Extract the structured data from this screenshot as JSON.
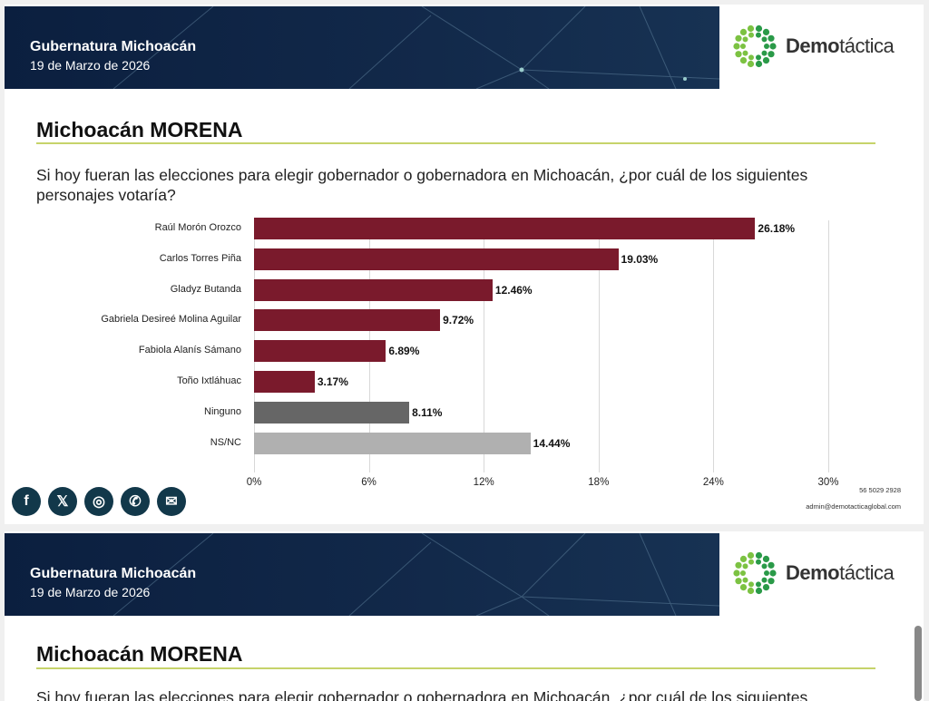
{
  "header": {
    "title": "Gubernatura Michoacán",
    "date": "19 de Marzo de 2026",
    "brand_bold": "Demo",
    "brand_light": "táctica"
  },
  "slide": {
    "title": "Michoacán MORENA",
    "question": "Si hoy fueran las elecciones para elegir gobernador o gobernadora en Michoacán, ¿por cuál de los siguientes personajes votaría?",
    "question_cut": "Si hoy fueran las elecciones para elegir gobernador o gobernadora en Michoacán, ¿por cuál de los siguientes"
  },
  "chart_data": {
    "type": "bar",
    "orientation": "horizontal",
    "categories": [
      "Raúl Morón Orozco",
      "Carlos Torres Piña",
      "Gladyz Butanda",
      "Gabriela Desireé Molina Aguilar",
      "Fabiola Alanís Sámano",
      "Toño Ixtláhuac",
      "Ninguno",
      "NS/NC"
    ],
    "values": [
      26.18,
      19.03,
      12.46,
      9.72,
      6.89,
      3.17,
      8.11,
      14.44
    ],
    "labels": [
      "26.18%",
      "19.03%",
      "12.46%",
      "9.72%",
      "6.89%",
      "3.17%",
      "8.11%",
      "14.44%"
    ],
    "colors": [
      "#7a1a2c",
      "#7a1a2c",
      "#7a1a2c",
      "#7a1a2c",
      "#7a1a2c",
      "#7a1a2c",
      "#666666",
      "#b0b0b0"
    ],
    "xlim": [
      0,
      30
    ],
    "xticks": [
      "0%",
      "6%",
      "12%",
      "18%",
      "24%",
      "30%"
    ],
    "grid": true
  },
  "footer": {
    "social": [
      "facebook",
      "x",
      "instagram",
      "phone",
      "email"
    ],
    "phone": "56 5029 2928",
    "email": "admin@demotacticaglobal.com"
  }
}
